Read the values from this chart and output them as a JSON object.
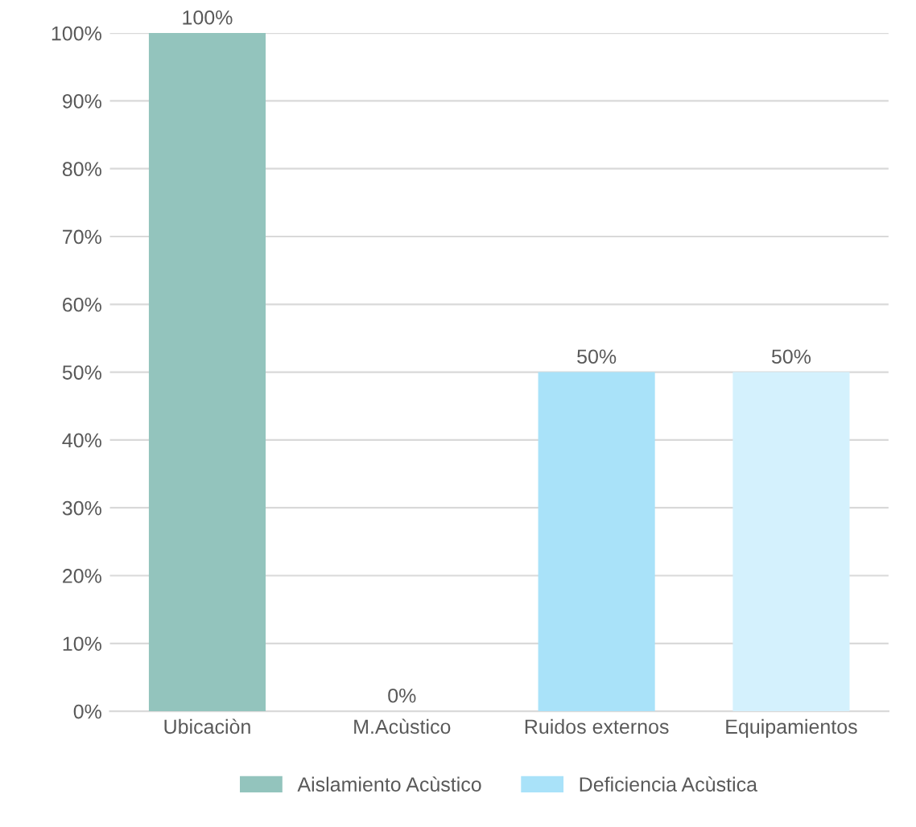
{
  "chart_data": {
    "type": "bar",
    "categories": [
      "Ubicaciòn",
      "M.Acùstico",
      "Ruidos externos",
      "Equipamientos"
    ],
    "series": [
      {
        "name": "Aislamiento Acùstico",
        "color": "#93c4bd",
        "colors": [
          "#93c4bd",
          "#93b3ad",
          null,
          null
        ],
        "values": [
          100,
          0,
          null,
          null
        ],
        "value_labels": [
          "100%",
          "0%",
          null,
          null
        ]
      },
      {
        "name": "Deficiencia Acùstica",
        "color": "#a9e2f9",
        "colors": [
          null,
          null,
          "#a9e2f9",
          "#d4f1fd"
        ],
        "values": [
          null,
          null,
          50,
          50
        ],
        "value_labels": [
          null,
          null,
          "50%",
          "50%"
        ]
      }
    ],
    "ylim": [
      0,
      100
    ],
    "yticks": [
      {
        "value": 0,
        "label": "0%"
      },
      {
        "value": 10,
        "label": "10%"
      },
      {
        "value": 20,
        "label": "20%"
      },
      {
        "value": 30,
        "label": "30%"
      },
      {
        "value": 40,
        "label": "40%"
      },
      {
        "value": 50,
        "label": "50%"
      },
      {
        "value": 60,
        "label": "60%"
      },
      {
        "value": 70,
        "label": "70%"
      },
      {
        "value": 80,
        "label": "80%"
      },
      {
        "value": 90,
        "label": "90%"
      },
      {
        "value": 100,
        "label": "100%"
      }
    ],
    "grid": "y",
    "legend": "bottom"
  }
}
